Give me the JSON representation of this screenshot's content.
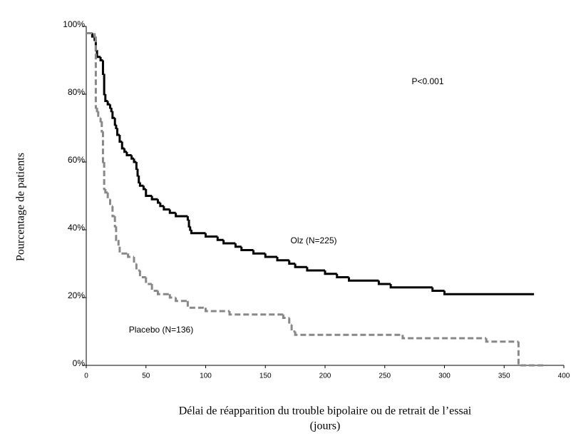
{
  "chart_data": {
    "type": "step",
    "xlabel": [
      "Délai de réapparition du trouble bipolaire ou de retrait de l’essai",
      "(jours)"
    ],
    "ylabel": "Pourcentage de patients",
    "annotations": [
      "P<0.001",
      "Olz (N=225)",
      "Placebo (N=136)"
    ],
    "xlim": [
      0,
      400
    ],
    "xticks": [
      0,
      50,
      100,
      150,
      200,
      250,
      300,
      350,
      400
    ],
    "ylim": [
      0,
      100
    ],
    "yticks": [
      {
        "value": 0,
        "label": "0%"
      },
      {
        "value": 20,
        "label": "20%"
      },
      {
        "value": 40,
        "label": "40%"
      },
      {
        "value": 60,
        "label": "60%"
      },
      {
        "value": 80,
        "label": "80%"
      },
      {
        "value": 100,
        "label": "100%"
      }
    ],
    "series": [
      {
        "color": "#000000",
        "dash": false,
        "x": [
          0,
          5,
          7,
          8,
          9,
          12,
          14,
          15,
          16,
          18,
          20,
          21,
          22,
          24,
          25,
          26,
          28,
          30,
          32,
          34,
          38,
          40,
          42,
          43,
          44,
          45,
          48,
          50,
          55,
          60,
          62,
          65,
          70,
          75,
          85,
          86,
          87,
          88,
          100,
          110,
          115,
          125,
          130,
          140,
          150,
          160,
          170,
          175,
          185,
          200,
          210,
          220,
          245,
          255,
          290,
          300,
          375
        ],
        "y": [
          98,
          97,
          96,
          93,
          91,
          90,
          86,
          80,
          78,
          77,
          76,
          75,
          73,
          71,
          70,
          68,
          66,
          64,
          63,
          62,
          61,
          60,
          58,
          56,
          54,
          53,
          52,
          50,
          49,
          48,
          47,
          46,
          45,
          44,
          43,
          41,
          40,
          39,
          38,
          37,
          36,
          35,
          34,
          33,
          32,
          31,
          30,
          29,
          28,
          27,
          26,
          25,
          24,
          23,
          22,
          21,
          21
        ]
      },
      {
        "color": "#888888",
        "dash": true,
        "x": [
          0,
          7,
          8,
          9,
          10,
          12,
          13,
          14,
          15,
          16,
          18,
          20,
          22,
          24,
          25,
          27,
          28,
          35,
          40,
          42,
          45,
          50,
          55,
          60,
          70,
          75,
          85,
          100,
          120,
          165,
          170,
          172,
          175,
          265,
          335,
          362,
          385
        ],
        "y": [
          98,
          97,
          76,
          75,
          73,
          72,
          69,
          60,
          52,
          51,
          49,
          47,
          44,
          41,
          37,
          35,
          33,
          32,
          30,
          28,
          26,
          24,
          22,
          21,
          20,
          19,
          17,
          16,
          15,
          14,
          12,
          10,
          9,
          8,
          7,
          0,
          0
        ]
      }
    ]
  }
}
